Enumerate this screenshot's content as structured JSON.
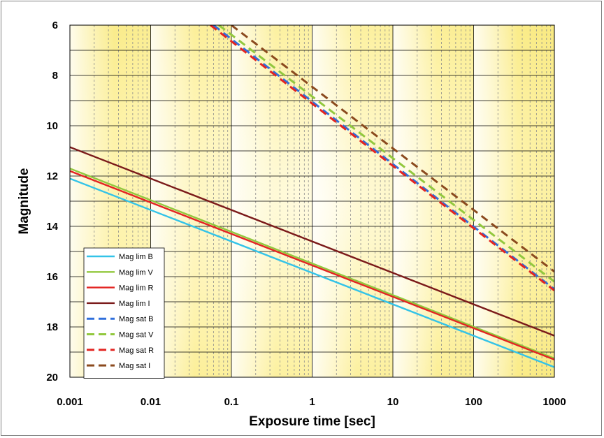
{
  "chart_data": {
    "type": "line",
    "xlabel": "Exposure time [sec]",
    "ylabel": "Magnitude",
    "x_scale": "log",
    "xlim": [
      0.001,
      1000
    ],
    "ylim": [
      20,
      6
    ],
    "y_inverted": true,
    "x_ticks": [
      "0.001",
      "0.01",
      "0.1",
      "1",
      "10",
      "100",
      "1000"
    ],
    "y_ticks": [
      "6",
      "8",
      "10",
      "12",
      "14",
      "16",
      "18",
      "20"
    ],
    "grid": true,
    "legend_position": "bottom-left",
    "series": [
      {
        "name": "Mag lim B",
        "color": "#33c3e8",
        "dash": false,
        "x": [
          0.001,
          1000
        ],
        "y": [
          12.1,
          19.6
        ]
      },
      {
        "name": "Mag lim V",
        "color": "#92c83e",
        "dash": false,
        "x": [
          0.001,
          1000
        ],
        "y": [
          11.7,
          19.25
        ]
      },
      {
        "name": "Mag lim R",
        "color": "#e32522",
        "dash": false,
        "x": [
          0.001,
          1000
        ],
        "y": [
          11.8,
          19.3
        ]
      },
      {
        "name": "Mag lim I",
        "color": "#7b1a1a",
        "dash": false,
        "x": [
          0.001,
          1000
        ],
        "y": [
          10.85,
          18.35
        ]
      },
      {
        "name": "Mag sat B",
        "color": "#2f6fdc",
        "dash": true,
        "x": [
          0.06,
          1000
        ],
        "y": [
          6.0,
          16.5
        ]
      },
      {
        "name": "Mag sat V",
        "color": "#92c83e",
        "dash": true,
        "x": [
          0.07,
          1000
        ],
        "y": [
          6.0,
          16.2
        ]
      },
      {
        "name": "Mag sat R",
        "color": "#e32522",
        "dash": true,
        "x": [
          0.055,
          1000
        ],
        "y": [
          6.0,
          16.55
        ]
      },
      {
        "name": "Mag sat I",
        "color": "#8b4a1e",
        "dash": true,
        "x": [
          0.1,
          1000
        ],
        "y": [
          6.0,
          15.8
        ]
      }
    ]
  }
}
